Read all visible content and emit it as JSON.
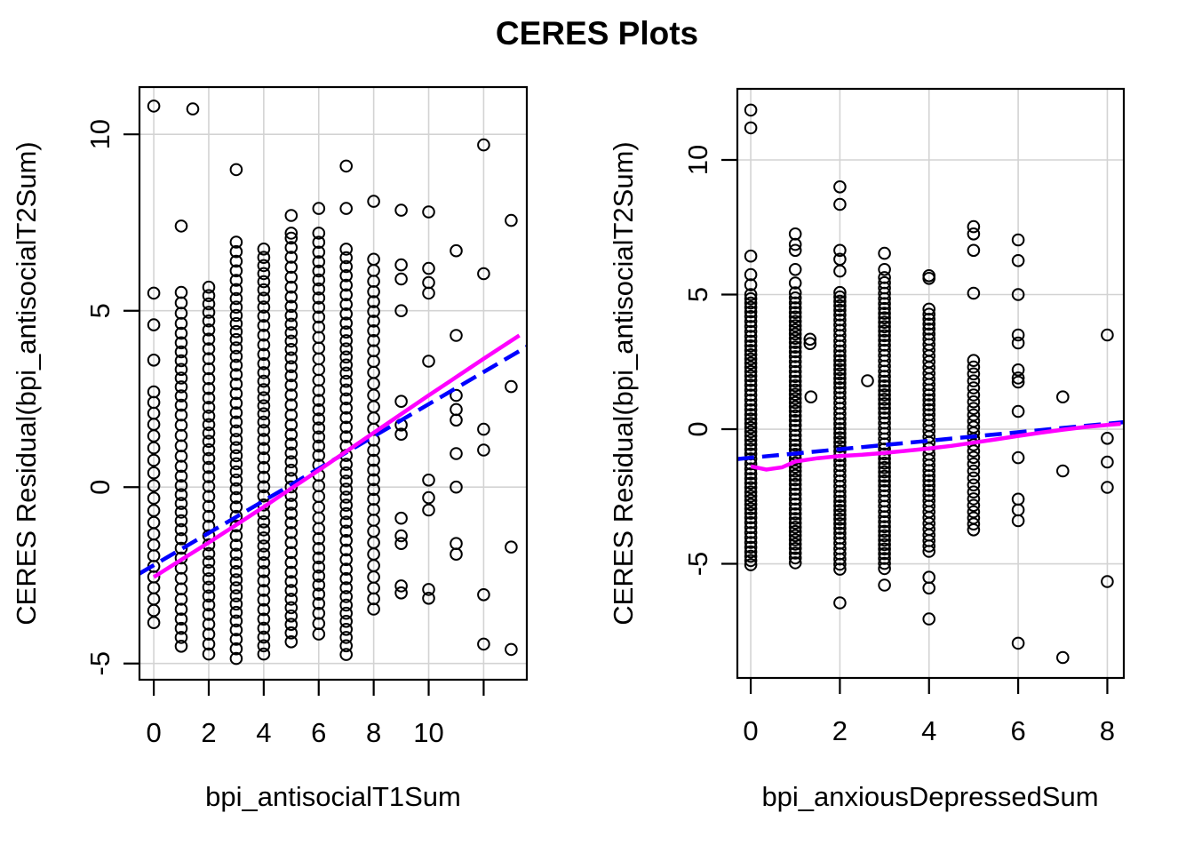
{
  "title": "CERES Plots",
  "colors": {
    "points": "#000000",
    "grid": "#d3d3d3",
    "axis": "#000000",
    "smooth": "#ff00ff",
    "fit": "#0000ff",
    "background": "#ffffff"
  },
  "chart_data": [
    {
      "type": "scatter",
      "panel": "left",
      "xlabel": "bpi_antisocialT1Sum",
      "ylabel": "CERES Residual(bpi_antisocialT2Sum)",
      "xlim": [
        -0.52,
        13.57
      ],
      "ylim": [
        -5.46,
        11.34
      ],
      "grid": true,
      "xticks": [
        {
          "v": 0,
          "label": "0"
        },
        {
          "v": 2,
          "label": "2"
        },
        {
          "v": 4,
          "label": "4"
        },
        {
          "v": 6,
          "label": "6"
        },
        {
          "v": 8,
          "label": "8"
        },
        {
          "v": 10,
          "label": "10"
        },
        {
          "v": 12,
          "label": ""
        }
      ],
      "yticks": [
        {
          "v": -5,
          "label": "-5"
        },
        {
          "v": 0,
          "label": "0"
        },
        {
          "v": 5,
          "label": "5"
        },
        {
          "v": 10,
          "label": "10"
        }
      ],
      "columns": [
        {
          "x": 0,
          "top": 2.7,
          "bottom": -4.2,
          "step": 0.33,
          "outliers": [
            10.8,
            5.5,
            4.6,
            3.6
          ]
        },
        {
          "x": 1,
          "top": 5.5,
          "bottom": -4.5,
          "step": 0.27,
          "outliers": [
            7.4
          ]
        },
        {
          "x": 2,
          "top": 5.7,
          "bottom": -4.75,
          "step": 0.26,
          "outliers": []
        },
        {
          "x": 3,
          "top": 6.9,
          "bottom": -5.0,
          "step": 0.25,
          "outliers": [
            9.0
          ]
        },
        {
          "x": 4,
          "top": 6.8,
          "bottom": -4.8,
          "step": 0.25,
          "outliers": []
        },
        {
          "x": 5,
          "top": 7.0,
          "bottom": -4.6,
          "step": 0.26,
          "outliers": [
            7.7,
            7.2
          ]
        },
        {
          "x": 6,
          "top": 7.0,
          "bottom": -4.3,
          "step": 0.28,
          "outliers": [
            7.9,
            7.2
          ]
        },
        {
          "x": 7,
          "top": 6.7,
          "bottom": -5.0,
          "step": 0.25,
          "outliers": [
            9.1,
            7.9
          ]
        },
        {
          "x": 8,
          "top": 6.5,
          "bottom": -3.4,
          "step": 0.3,
          "outliers": [
            8.1
          ]
        }
      ],
      "points": [
        [
          1.42,
          10.72
        ],
        [
          9,
          7.85
        ],
        [
          9,
          6.3
        ],
        [
          9,
          5.9
        ],
        [
          9,
          5.0
        ],
        [
          9,
          2.43
        ],
        [
          9,
          1.76
        ],
        [
          9,
          1.5
        ],
        [
          9,
          -0.88
        ],
        [
          9,
          -1.38
        ],
        [
          9,
          -1.6
        ],
        [
          9,
          -2.8
        ],
        [
          9,
          -3.0
        ],
        [
          10,
          7.8
        ],
        [
          10,
          6.2
        ],
        [
          10,
          5.8
        ],
        [
          10,
          5.5
        ],
        [
          10,
          3.57
        ],
        [
          10,
          0.2
        ],
        [
          10,
          -0.3
        ],
        [
          10,
          -0.65
        ],
        [
          10,
          -2.9
        ],
        [
          10,
          -3.15
        ],
        [
          11,
          6.7
        ],
        [
          11,
          4.3
        ],
        [
          11,
          2.6
        ],
        [
          11,
          2.2
        ],
        [
          11,
          1.9
        ],
        [
          11,
          0.95
        ],
        [
          11,
          0.0
        ],
        [
          11,
          -1.6
        ],
        [
          11,
          -1.9
        ],
        [
          12,
          9.7
        ],
        [
          12,
          6.05
        ],
        [
          12,
          1.64
        ],
        [
          12,
          1.05
        ],
        [
          12,
          -3.05
        ],
        [
          12,
          -4.45
        ],
        [
          13,
          7.56
        ],
        [
          13,
          2.85
        ],
        [
          13,
          -1.7
        ],
        [
          13,
          -4.6
        ]
      ],
      "lines": [
        {
          "name": "linear-fit",
          "color": "#0000ff",
          "dashed": true,
          "pts": [
            [
              -0.52,
              -2.45
            ],
            [
              13.57,
              3.98
            ]
          ]
        },
        {
          "name": "smooth",
          "color": "#ff00ff",
          "dashed": false,
          "pts": [
            [
              0,
              -2.55
            ],
            [
              1,
              -2.06
            ],
            [
              2,
              -1.57
            ],
            [
              3,
              -1.07
            ],
            [
              4,
              -0.56
            ],
            [
              5,
              -0.04
            ],
            [
              6,
              0.48
            ],
            [
              7,
              1.01
            ],
            [
              8,
              1.54
            ],
            [
              9,
              2.07
            ],
            [
              10,
              2.6
            ],
            [
              11,
              3.12
            ],
            [
              12,
              3.64
            ],
            [
              13.3,
              4.3
            ]
          ]
        }
      ]
    },
    {
      "type": "scatter",
      "panel": "right",
      "xlabel": "bpi_anxiousDepressedSum",
      "ylabel": "CERES Residual(bpi_antisocialT2Sum)",
      "xlim": [
        -0.3,
        8.37
      ],
      "ylim": [
        -9.24,
        12.64
      ],
      "grid": true,
      "xticks": [
        {
          "v": 0,
          "label": "0"
        },
        {
          "v": 2,
          "label": "2"
        },
        {
          "v": 4,
          "label": "4"
        },
        {
          "v": 6,
          "label": "6"
        },
        {
          "v": 8,
          "label": "8"
        }
      ],
      "yticks": [
        {
          "v": -5,
          "label": "-5"
        },
        {
          "v": 0,
          "label": "0"
        },
        {
          "v": 5,
          "label": "5"
        },
        {
          "v": 10,
          "label": "10"
        }
      ],
      "columns": [
        {
          "x": 0,
          "top": 5.0,
          "bottom": -5.16,
          "step": 0.17,
          "outliers": [
            11.85,
            11.19,
            6.43,
            5.74,
            5.36
          ]
        },
        {
          "x": 1,
          "top": 5.05,
          "bottom": -5.07,
          "step": 0.17,
          "outliers": [
            7.25,
            6.86,
            6.64,
            5.93,
            5.43
          ]
        },
        {
          "x": 2,
          "top": 5.1,
          "bottom": -5.18,
          "step": 0.18,
          "outliers": [
            9.0,
            8.35,
            6.64,
            6.31,
            5.87,
            -6.45
          ]
        },
        {
          "x": 3,
          "top": 5.6,
          "bottom": -5.2,
          "step": 0.18,
          "outliers": [
            6.53,
            5.93,
            -5.79
          ]
        },
        {
          "x": 4,
          "top": 4.5,
          "bottom": -4.5,
          "step": 0.2,
          "outliers": [
            5.7,
            5.6,
            -5.5,
            -5.9,
            -7.05
          ]
        },
        {
          "x": 5,
          "top": 2.5,
          "bottom": -3.8,
          "step": 0.24,
          "outliers": [
            7.52,
            7.25,
            6.64,
            5.05
          ]
        }
      ],
      "points": [
        [
          6,
          7.03
        ],
        [
          6,
          6.26
        ],
        [
          6,
          5.0
        ],
        [
          6,
          3.5
        ],
        [
          6,
          3.2
        ],
        [
          6,
          2.2
        ],
        [
          6,
          1.9
        ],
        [
          6,
          1.75
        ],
        [
          6,
          0.66
        ],
        [
          6,
          -1.06
        ],
        [
          6,
          -2.6
        ],
        [
          6,
          -3.0
        ],
        [
          6,
          -3.4
        ],
        [
          6,
          -7.95
        ],
        [
          7,
          1.2
        ],
        [
          7,
          -1.55
        ],
        [
          7,
          -8.48
        ],
        [
          8,
          3.5
        ],
        [
          8,
          -0.34
        ],
        [
          8,
          -1.22
        ],
        [
          8,
          -2.16
        ],
        [
          8,
          -5.66
        ],
        [
          1.33,
          3.34
        ],
        [
          1.33,
          3.18
        ],
        [
          1.35,
          1.2
        ],
        [
          2.62,
          1.8
        ]
      ],
      "lines": [
        {
          "name": "linear-fit",
          "color": "#0000ff",
          "dashed": true,
          "pts": [
            [
              -0.3,
              -1.11
            ],
            [
              8.37,
              0.26
            ]
          ]
        },
        {
          "name": "smooth",
          "color": "#ff00ff",
          "dashed": false,
          "pts": [
            [
              0,
              -1.38
            ],
            [
              0.35,
              -1.5
            ],
            [
              0.7,
              -1.42
            ],
            [
              1,
              -1.2
            ],
            [
              1.5,
              -1.08
            ],
            [
              2,
              -1.0
            ],
            [
              2.5,
              -0.95
            ],
            [
              3,
              -0.88
            ],
            [
              3.5,
              -0.8
            ],
            [
              4,
              -0.72
            ],
            [
              4.5,
              -0.62
            ],
            [
              5,
              -0.5
            ],
            [
              5.5,
              -0.38
            ],
            [
              6,
              -0.25
            ],
            [
              6.5,
              -0.13
            ],
            [
              7,
              -0.02
            ],
            [
              7.5,
              0.08
            ],
            [
              8,
              0.16
            ],
            [
              8.3,
              0.2
            ]
          ]
        }
      ]
    }
  ]
}
